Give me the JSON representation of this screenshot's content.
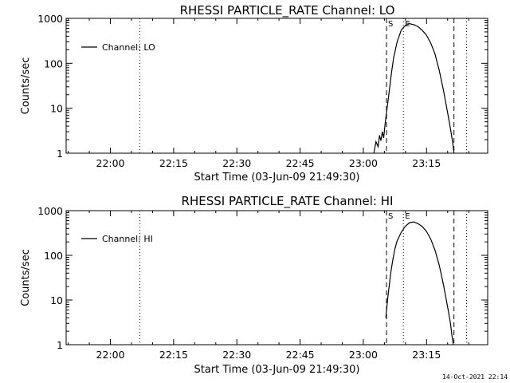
{
  "footer": "14-Oct-2021 22:14",
  "chart_data": [
    {
      "type": "line",
      "title": "RHESSI PARTICLE_RATE Channel: LO",
      "xlabel": "Start Time (03-Jun-09 21:49:30)",
      "ylabel": "Counts/sec",
      "yscale": "log",
      "ylim": [
        1,
        1000
      ],
      "xlim": [
        "21:49:30",
        "23:29:30"
      ],
      "x_ticks": [
        "22:00",
        "22:15",
        "22:30",
        "22:45",
        "23:00",
        "23:15"
      ],
      "y_ticks": [
        "1",
        "10",
        "100",
        "1000"
      ],
      "grid": false,
      "legend": {
        "position": "top-left",
        "entries": [
          "Channel: LO"
        ]
      },
      "markers": [
        {
          "label": "",
          "time": "22:07:00",
          "style": "dotted"
        },
        {
          "label": "S",
          "time": "23:05:30",
          "style": "dashed"
        },
        {
          "label": "E",
          "time": "23:09:30",
          "style": "dotted"
        },
        {
          "label": "",
          "time": "23:21:30",
          "style": "dashed"
        },
        {
          "label": "",
          "time": "23:24:30",
          "style": "dotted"
        }
      ],
      "series": [
        {
          "name": "Channel: LO",
          "x": [
            "23:02:30",
            "23:03:00",
            "23:03:30",
            "23:03:50",
            "23:04:10",
            "23:04:30",
            "23:04:50",
            "23:05:10",
            "23:05:30",
            "23:05:50",
            "23:06:10",
            "23:06:40",
            "23:07:10",
            "23:08:00",
            "23:09:00",
            "23:10:00",
            "23:11:00",
            "23:12:00",
            "23:13:00",
            "23:14:00",
            "23:15:00",
            "23:16:00",
            "23:17:00",
            "23:18:00",
            "23:19:00",
            "23:20:00",
            "23:20:40",
            "23:21:10",
            "23:21:30"
          ],
          "y": [
            1,
            1.8,
            1.4,
            2.5,
            1.9,
            3.0,
            2.2,
            4.5,
            8,
            14,
            25,
            60,
            130,
            300,
            550,
            700,
            760,
            720,
            650,
            540,
            420,
            280,
            160,
            70,
            25,
            8,
            3.5,
            1.8,
            1
          ]
        }
      ]
    },
    {
      "type": "line",
      "title": "RHESSI PARTICLE_RATE Channel: HI",
      "xlabel": "Start Time (03-Jun-09 21:49:30)",
      "ylabel": "Counts/sec",
      "yscale": "log",
      "ylim": [
        1,
        1000
      ],
      "xlim": [
        "21:49:30",
        "23:29:30"
      ],
      "x_ticks": [
        "22:00",
        "22:15",
        "22:30",
        "22:45",
        "23:00",
        "23:15"
      ],
      "y_ticks": [
        "1",
        "10",
        "100",
        "1000"
      ],
      "grid": false,
      "legend": {
        "position": "top-left",
        "entries": [
          "Channel: HI"
        ]
      },
      "markers": [
        {
          "label": "",
          "time": "22:07:00",
          "style": "dotted"
        },
        {
          "label": "S",
          "time": "23:05:30",
          "style": "dashed"
        },
        {
          "label": "E",
          "time": "23:09:30",
          "style": "dotted"
        },
        {
          "label": "",
          "time": "23:21:30",
          "style": "dashed"
        },
        {
          "label": "",
          "time": "23:24:30",
          "style": "dotted"
        }
      ],
      "series": [
        {
          "name": "Channel: HI",
          "x": [
            "23:05:20",
            "23:05:35",
            "23:05:50",
            "23:06:10",
            "23:06:30",
            "23:07:00",
            "23:07:30",
            "23:08:00",
            "23:09:00",
            "23:10:00",
            "23:11:00",
            "23:12:00",
            "23:13:00",
            "23:14:00",
            "23:15:00",
            "23:16:00",
            "23:17:00",
            "23:18:00",
            "23:19:00",
            "23:20:00",
            "23:20:40",
            "23:21:00",
            "23:21:20"
          ],
          "y": [
            4,
            7,
            12,
            22,
            40,
            80,
            140,
            210,
            330,
            450,
            540,
            560,
            510,
            440,
            340,
            230,
            130,
            60,
            22,
            7,
            3,
            1.7,
            1
          ]
        }
      ]
    }
  ]
}
